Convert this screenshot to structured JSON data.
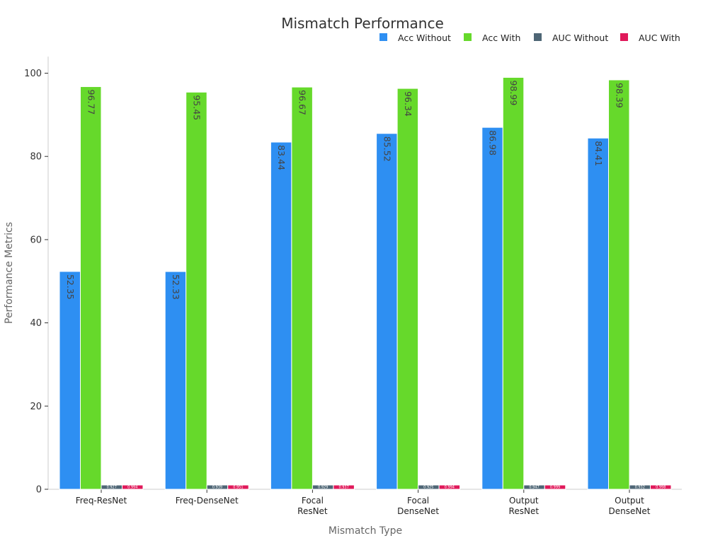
{
  "chart_data": {
    "type": "bar",
    "title": "Mismatch Performance",
    "xlabel": "Mismatch Type",
    "ylabel": "Performance Metrics",
    "ylim": [
      0,
      104
    ],
    "yticks": [
      0,
      20,
      40,
      60,
      80,
      100
    ],
    "categories": [
      [
        "Freq-ResNet"
      ],
      [
        "Freq-DenseNet"
      ],
      [
        "Focal",
        "ResNet"
      ],
      [
        "Focal",
        "DenseNet"
      ],
      [
        "Output",
        "ResNet"
      ],
      [
        "Output",
        "DenseNet"
      ]
    ],
    "series": [
      {
        "name": "Acc Without",
        "color": "#2e8ff2",
        "values": [
          52.35,
          52.33,
          83.44,
          85.52,
          86.98,
          84.41
        ],
        "labels": [
          "52.35",
          "52.33",
          "83.44",
          "85.52",
          "86.98",
          "84.41"
        ]
      },
      {
        "name": "Acc With",
        "color": "#66d92b",
        "values": [
          96.77,
          95.45,
          96.67,
          96.34,
          98.99,
          98.39
        ],
        "labels": [
          "96.77",
          "95.45",
          "96.67",
          "96.34",
          "98.99",
          "98.39"
        ]
      },
      {
        "name": "AUC Without",
        "color": "#4e6675",
        "values": [
          0.927,
          0.939,
          0.929,
          0.925,
          0.947,
          0.932
        ],
        "labels": [
          "0.927",
          "0.939",
          "0.929",
          "0.925",
          "0.947",
          "0.932"
        ]
      },
      {
        "name": "AUC With",
        "color": "#e0195a",
        "values": [
          0.994,
          0.951,
          0.937,
          0.994,
          0.999,
          0.998
        ],
        "labels": [
          "0.994",
          "0.951",
          "0.937",
          "0.994",
          "0.999",
          "0.998"
        ]
      }
    ],
    "legend_position": "top-right",
    "grid": false
  }
}
